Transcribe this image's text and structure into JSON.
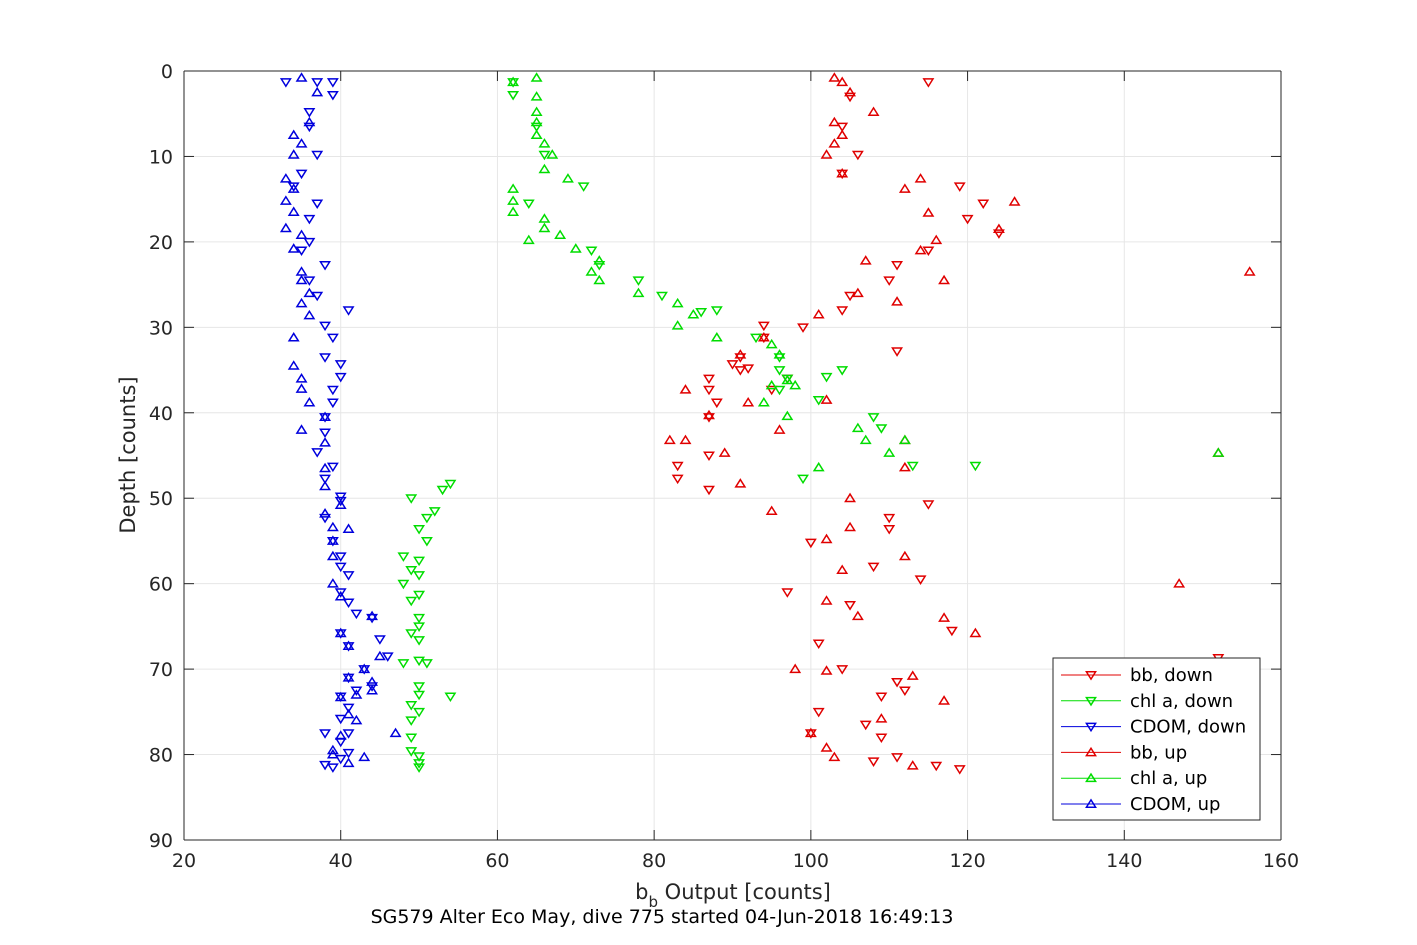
{
  "chart_data": {
    "type": "scatter",
    "caption": "SG579 Alter Eco May, dive 775 started 04-Jun-2018 16:49:13",
    "xlabel_main": "b",
    "xlabel_sub": "b",
    "xlabel_rest": " Output [counts]",
    "ylabel": "Depth [counts]",
    "xlim": [
      20,
      160
    ],
    "ylim": [
      0,
      90
    ],
    "y_reversed": true,
    "x_ticks": [
      "20",
      "40",
      "60",
      "80",
      "100",
      "120",
      "140",
      "160"
    ],
    "y_ticks": [
      "0",
      "10",
      "20",
      "30",
      "40",
      "50",
      "60",
      "70",
      "80",
      "90"
    ],
    "grid": true,
    "legend_position": "bottom-right",
    "series": [
      {
        "name": "bb, down",
        "color": "#e00000",
        "marker": "triangle-down",
        "points": [
          [
            115,
            1.3
          ],
          [
            105,
            3
          ],
          [
            104,
            6.5
          ],
          [
            106,
            9.8
          ],
          [
            104,
            12
          ],
          [
            119,
            13.5
          ],
          [
            122,
            15.5
          ],
          [
            120,
            17.3
          ],
          [
            124,
            19
          ],
          [
            115,
            21
          ],
          [
            111,
            22.7
          ],
          [
            110,
            24.5
          ],
          [
            105,
            26.3
          ],
          [
            104,
            28
          ],
          [
            99,
            30
          ],
          [
            94,
            29.8
          ],
          [
            94,
            31.2
          ],
          [
            91,
            33.5
          ],
          [
            90,
            34.3
          ],
          [
            91,
            35
          ],
          [
            97,
            36
          ],
          [
            87,
            36
          ],
          [
            87,
            37.3
          ],
          [
            88,
            38.8
          ],
          [
            87,
            40.5
          ],
          [
            87,
            45
          ],
          [
            83,
            46.2
          ],
          [
            83,
            47.7
          ],
          [
            87,
            49
          ],
          [
            115,
            50.7
          ],
          [
            110,
            52.3
          ],
          [
            110,
            53.6
          ],
          [
            100,
            55.2
          ],
          [
            108,
            58
          ],
          [
            114,
            59.5
          ],
          [
            97,
            61
          ],
          [
            105,
            62.5
          ],
          [
            118,
            65.5
          ],
          [
            101,
            67
          ],
          [
            104,
            70
          ],
          [
            111,
            71.5
          ],
          [
            112,
            72.5
          ],
          [
            109,
            73.2
          ],
          [
            101,
            75
          ],
          [
            107,
            76.5
          ],
          [
            109,
            78
          ],
          [
            100,
            77.5
          ],
          [
            111,
            80.3
          ],
          [
            108,
            80.8
          ],
          [
            116,
            81.3
          ],
          [
            119,
            81.7
          ],
          [
            152,
            68.7
          ],
          [
            111,
            32.8
          ],
          [
            92,
            34.8
          ],
          [
            95,
            37.3
          ]
        ]
      },
      {
        "name": "chl a, down",
        "color": "#00dd00",
        "marker": "triangle-down",
        "points": [
          [
            62,
            1.3
          ],
          [
            62,
            2.8
          ],
          [
            65,
            6.5
          ],
          [
            66,
            9.8
          ],
          [
            71,
            13.5
          ],
          [
            64,
            15.5
          ],
          [
            72,
            21
          ],
          [
            73,
            22.7
          ],
          [
            78,
            24.5
          ],
          [
            81,
            26.3
          ],
          [
            86,
            28.2
          ],
          [
            88,
            28
          ],
          [
            93,
            31.2
          ],
          [
            96,
            33.5
          ],
          [
            96,
            35
          ],
          [
            104,
            35
          ],
          [
            102,
            35.8
          ],
          [
            97,
            36
          ],
          [
            96,
            37.3
          ],
          [
            101,
            38.5
          ],
          [
            108,
            40.5
          ],
          [
            109,
            41.8
          ],
          [
            113,
            46.2
          ],
          [
            121,
            46.2
          ],
          [
            99,
            47.7
          ],
          [
            54,
            48.3
          ],
          [
            53,
            49
          ],
          [
            49,
            50
          ],
          [
            52,
            51.5
          ],
          [
            51,
            52.3
          ],
          [
            50,
            53.6
          ],
          [
            51,
            55
          ],
          [
            48,
            56.8
          ],
          [
            50,
            57.3
          ],
          [
            49,
            58.4
          ],
          [
            50,
            59
          ],
          [
            48,
            60
          ],
          [
            50,
            61.3
          ],
          [
            49,
            62
          ],
          [
            50,
            64
          ],
          [
            50,
            65
          ],
          [
            49,
            65.8
          ],
          [
            50,
            66.6
          ],
          [
            51,
            69.3
          ],
          [
            50,
            69
          ],
          [
            48,
            69.3
          ],
          [
            50,
            72
          ],
          [
            50,
            73
          ],
          [
            49,
            74.2
          ],
          [
            50,
            75
          ],
          [
            49,
            76
          ],
          [
            49,
            78
          ],
          [
            49,
            79.6
          ],
          [
            50,
            80.2
          ],
          [
            50,
            81
          ],
          [
            50,
            81.5
          ],
          [
            54,
            73.2
          ]
        ]
      },
      {
        "name": "CDOM, down",
        "color": "#0000dd",
        "marker": "triangle-down",
        "points": [
          [
            33,
            1.3
          ],
          [
            37,
            1.3
          ],
          [
            39,
            1.3
          ],
          [
            39,
            2.8
          ],
          [
            36,
            4.8
          ],
          [
            36,
            6.5
          ],
          [
            37,
            9.8
          ],
          [
            35,
            12
          ],
          [
            34,
            13.5
          ],
          [
            37,
            15.5
          ],
          [
            36,
            17.3
          ],
          [
            36,
            20
          ],
          [
            35,
            21
          ],
          [
            38,
            22.7
          ],
          [
            36,
            24.5
          ],
          [
            37,
            26.3
          ],
          [
            41,
            28
          ],
          [
            38,
            29.8
          ],
          [
            39,
            31.2
          ],
          [
            38,
            33.5
          ],
          [
            40,
            34.3
          ],
          [
            40,
            35.8
          ],
          [
            39,
            37.3
          ],
          [
            39,
            38.8
          ],
          [
            38,
            40.5
          ],
          [
            38,
            42.3
          ],
          [
            37,
            44.6
          ],
          [
            39,
            46.3
          ],
          [
            38,
            47.7
          ],
          [
            40,
            49.8
          ],
          [
            40,
            50.3
          ],
          [
            38,
            52.3
          ],
          [
            39,
            55
          ],
          [
            40,
            56.8
          ],
          [
            40,
            58
          ],
          [
            41,
            59
          ],
          [
            40,
            61
          ],
          [
            41,
            62.2
          ],
          [
            40,
            65.8
          ],
          [
            41,
            67.3
          ],
          [
            41,
            71
          ],
          [
            42,
            72.5
          ],
          [
            40,
            73.2
          ],
          [
            41,
            74.5
          ],
          [
            40,
            75.8
          ],
          [
            41,
            77.5
          ],
          [
            40,
            78.5
          ],
          [
            38,
            81.2
          ],
          [
            39,
            81.5
          ],
          [
            40,
            80.5
          ],
          [
            41,
            79.8
          ],
          [
            38,
            77.5
          ],
          [
            44,
            72
          ],
          [
            46,
            68.5
          ],
          [
            45,
            66.5
          ],
          [
            44,
            64
          ],
          [
            42,
            63.5
          ],
          [
            43,
            70
          ]
        ]
      },
      {
        "name": "bb, up",
        "color": "#e00000",
        "marker": "triangle-up",
        "points": [
          [
            103,
            0.8
          ],
          [
            104,
            1.3
          ],
          [
            105,
            2.5
          ],
          [
            108,
            4.8
          ],
          [
            103,
            6
          ],
          [
            104,
            7.5
          ],
          [
            103,
            8.5
          ],
          [
            102,
            9.8
          ],
          [
            104,
            12
          ],
          [
            114,
            12.6
          ],
          [
            112,
            13.8
          ],
          [
            115,
            16.6
          ],
          [
            116,
            19.8
          ],
          [
            114,
            21
          ],
          [
            107,
            22.2
          ],
          [
            117,
            24.5
          ],
          [
            106,
            26
          ],
          [
            111,
            27
          ],
          [
            101,
            28.5
          ],
          [
            126,
            15.3
          ],
          [
            124,
            18.5
          ],
          [
            156,
            23.5
          ],
          [
            94,
            31.2
          ],
          [
            84,
            37.3
          ],
          [
            87,
            40.3
          ],
          [
            82,
            43.2
          ],
          [
            84,
            43.2
          ],
          [
            89,
            44.7
          ],
          [
            92,
            38.8
          ],
          [
            96,
            42
          ],
          [
            102,
            38.5
          ],
          [
            112,
            43.2
          ],
          [
            112,
            46.4
          ],
          [
            91,
            48.3
          ],
          [
            105,
            50
          ],
          [
            95,
            51.5
          ],
          [
            105,
            53.4
          ],
          [
            102,
            54.8
          ],
          [
            112,
            56.8
          ],
          [
            104,
            58.4
          ],
          [
            147,
            60
          ],
          [
            102,
            62
          ],
          [
            106,
            63.8
          ],
          [
            117,
            64
          ],
          [
            121,
            65.8
          ],
          [
            102,
            70.2
          ],
          [
            113,
            70.8
          ],
          [
            117,
            73.7
          ],
          [
            109,
            75.8
          ],
          [
            100,
            77.5
          ],
          [
            102,
            79.2
          ],
          [
            103,
            80.3
          ],
          [
            113,
            81.3
          ],
          [
            152,
            44.7
          ],
          [
            91,
            33.2
          ],
          [
            98,
            70
          ]
        ]
      },
      {
        "name": "chl a, up",
        "color": "#00dd00",
        "marker": "triangle-up",
        "points": [
          [
            65,
            0.8
          ],
          [
            62,
            1.3
          ],
          [
            65,
            3
          ],
          [
            65,
            4.8
          ],
          [
            65,
            6
          ],
          [
            65,
            7.5
          ],
          [
            66,
            8.5
          ],
          [
            67,
            9.8
          ],
          [
            66,
            11.5
          ],
          [
            69,
            12.6
          ],
          [
            62,
            13.8
          ],
          [
            62,
            15.2
          ],
          [
            62,
            16.5
          ],
          [
            66,
            17.3
          ],
          [
            66,
            18.4
          ],
          [
            68,
            19.2
          ],
          [
            64,
            19.8
          ],
          [
            70,
            20.8
          ],
          [
            73,
            22.2
          ],
          [
            72,
            23.5
          ],
          [
            73,
            24.5
          ],
          [
            78,
            26
          ],
          [
            83,
            27.2
          ],
          [
            85,
            28.5
          ],
          [
            83,
            29.8
          ],
          [
            88,
            31.2
          ],
          [
            95,
            32
          ],
          [
            96,
            33.2
          ],
          [
            97,
            36.2
          ],
          [
            94,
            38.8
          ],
          [
            97,
            40.4
          ],
          [
            106,
            41.8
          ],
          [
            107,
            43.2
          ],
          [
            110,
            44.7
          ],
          [
            112,
            43.2
          ],
          [
            152,
            44.7
          ],
          [
            101,
            46.4
          ],
          [
            98,
            36.8
          ],
          [
            95,
            36.8
          ]
        ]
      },
      {
        "name": "CDOM, up",
        "color": "#0000dd",
        "marker": "triangle-up",
        "points": [
          [
            35,
            0.8
          ],
          [
            37,
            2.5
          ],
          [
            36,
            6
          ],
          [
            34,
            7.5
          ],
          [
            35,
            8.5
          ],
          [
            34,
            9.8
          ],
          [
            33,
            12.6
          ],
          [
            34,
            13.8
          ],
          [
            33,
            15.2
          ],
          [
            34,
            16.5
          ],
          [
            33,
            18.4
          ],
          [
            35,
            19.2
          ],
          [
            34,
            20.8
          ],
          [
            35,
            23.5
          ],
          [
            35,
            24.5
          ],
          [
            36,
            26
          ],
          [
            35,
            27.2
          ],
          [
            36,
            28.6
          ],
          [
            34,
            31.2
          ],
          [
            34,
            34.5
          ],
          [
            35,
            36
          ],
          [
            35,
            37.2
          ],
          [
            36,
            38.8
          ],
          [
            35,
            42
          ],
          [
            38,
            40.5
          ],
          [
            38,
            43.5
          ],
          [
            38,
            46.5
          ],
          [
            38,
            48.6
          ],
          [
            40,
            50.8
          ],
          [
            38,
            51.8
          ],
          [
            39,
            53.4
          ],
          [
            41,
            53.6
          ],
          [
            39,
            55
          ],
          [
            39,
            56.8
          ],
          [
            39,
            60
          ],
          [
            40,
            61.5
          ],
          [
            44,
            63.8
          ],
          [
            40,
            65.8
          ],
          [
            41,
            67.3
          ],
          [
            43,
            70
          ],
          [
            44,
            71.5
          ],
          [
            44,
            72.5
          ],
          [
            45,
            68.5
          ],
          [
            41,
            71
          ],
          [
            40,
            73.3
          ],
          [
            42,
            76
          ],
          [
            40,
            77.8
          ],
          [
            39,
            79.5
          ],
          [
            39,
            80
          ],
          [
            41,
            81
          ],
          [
            43,
            80.3
          ],
          [
            47,
            77.5
          ],
          [
            42,
            73
          ],
          [
            41,
            75.3
          ]
        ]
      }
    ]
  }
}
